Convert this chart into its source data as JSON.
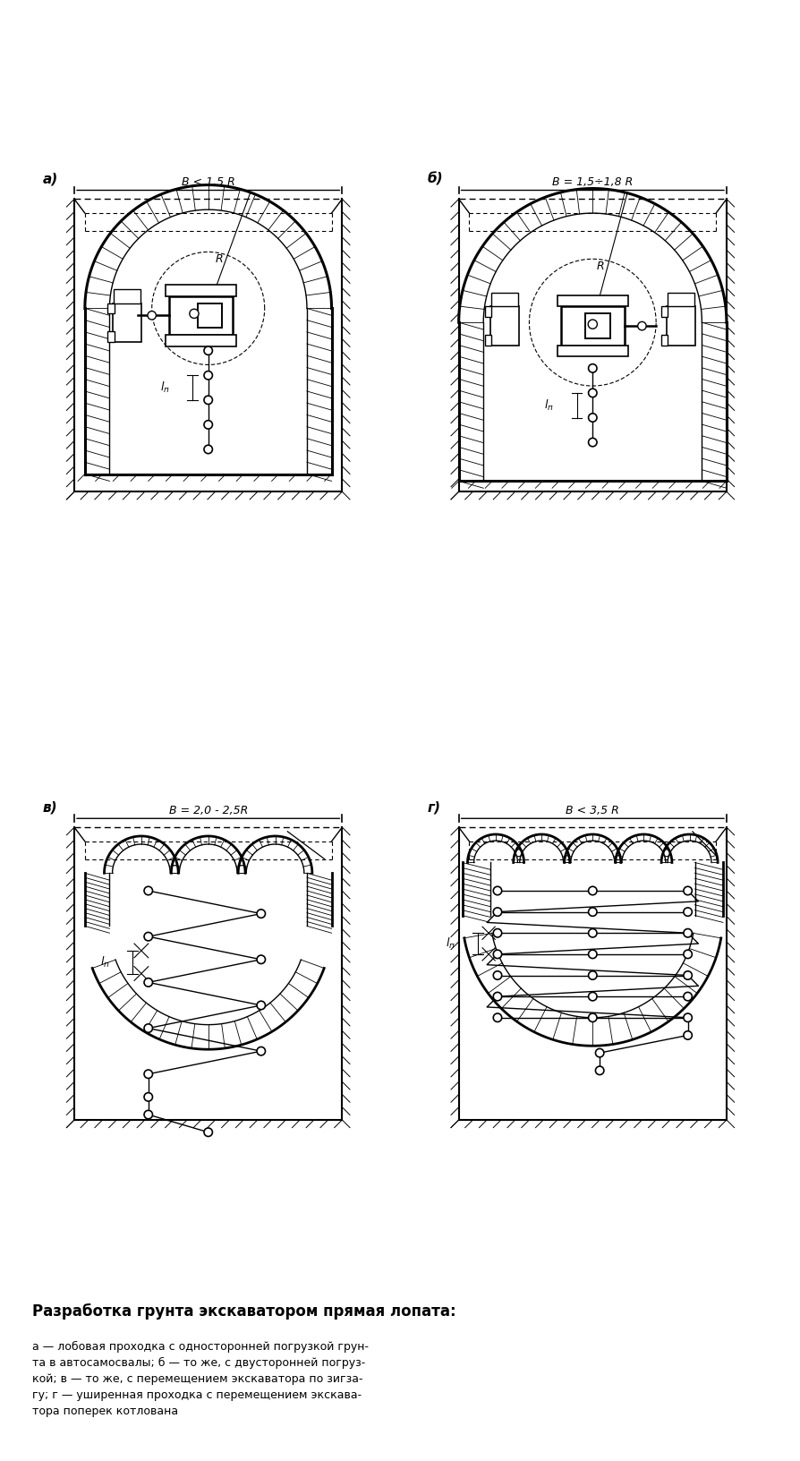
{
  "title": "Разработка грунта экскаватором прямая лопата:",
  "caption_lines": [
    "а — лобовая проходка с односторонней погрузкой грун-",
    "та в автосамосвалы; б — то же, с двусторонней погруз-",
    "кой; в — то же, с перемещением экскаватора по зигза-",
    "гу; г — уширенная проходка с перемещением экскава-",
    "тора поперек котлована"
  ],
  "labels": [
    "а)",
    "б)",
    "в)",
    "г)"
  ],
  "width_labels": [
    "B < 1,5 R",
    "B = 1,5÷1,8 R",
    "B = 2,0 - 2,5R",
    "B < 3,5 R"
  ],
  "bg_color": "#ffffff",
  "line_color": "#000000"
}
